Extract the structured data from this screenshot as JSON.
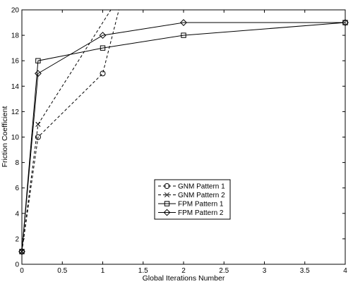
{
  "chart_data": {
    "type": "line",
    "title": "",
    "xlabel": "Global Iterations Number",
    "ylabel": "Friction Coefficient",
    "xlim": [
      0,
      4
    ],
    "ylim": [
      0,
      20
    ],
    "xticks": [
      0,
      0.5,
      1,
      1.5,
      2,
      2.5,
      3,
      3.5,
      4
    ],
    "xtick_labels": [
      "0",
      "0.5",
      "1",
      "1.5",
      "2",
      "2.5",
      "3",
      "3.5",
      "4"
    ],
    "yticks": [
      0,
      2,
      4,
      6,
      8,
      10,
      12,
      14,
      16,
      18,
      20
    ],
    "ytick_labels": [
      "0",
      "2",
      "4",
      "6",
      "8",
      "10",
      "12",
      "14",
      "16",
      "18",
      "20"
    ],
    "grid": false,
    "legend_position": "center-right",
    "series": [
      {
        "name": "GNM Pattern 1",
        "marker": "circle",
        "line_style": "dashed",
        "x": [
          0,
          0.2,
          1,
          1.2
        ],
        "y": [
          1,
          10,
          15,
          20
        ]
      },
      {
        "name": "GNM Pattern 2",
        "marker": "x",
        "line_style": "dashed",
        "x": [
          0,
          0.2,
          1.1
        ],
        "y": [
          1,
          11,
          20
        ]
      },
      {
        "name": "FPM Pattern 1",
        "marker": "square",
        "line_style": "solid",
        "x": [
          0,
          0.2,
          1,
          2,
          4
        ],
        "y": [
          1,
          16,
          17,
          18,
          19
        ]
      },
      {
        "name": "FPM Pattern 2",
        "marker": "diamond",
        "line_style": "solid",
        "x": [
          0,
          0.2,
          1,
          2,
          4
        ],
        "y": [
          1,
          15,
          18,
          19,
          19
        ]
      }
    ]
  }
}
